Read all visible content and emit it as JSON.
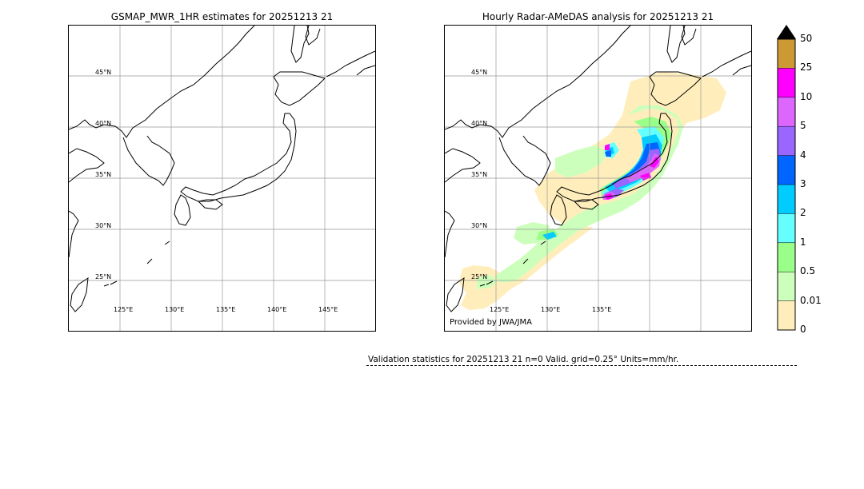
{
  "left_panel": {
    "title": "GSMAP_MWR_1HR estimates for 20251213 21",
    "lat_labels": [
      "45°N",
      "40°N",
      "35°N",
      "30°N",
      "25°N"
    ],
    "lon_labels": [
      "125°E",
      "130°E",
      "135°E",
      "140°E",
      "145°E"
    ]
  },
  "right_panel": {
    "title": "Hourly Radar-AMeDAS analysis for 20251213 21",
    "lat_labels": [
      "45°N",
      "40°N",
      "35°N",
      "30°N",
      "25°N"
    ],
    "lon_labels": [
      "125°E",
      "130°E",
      "135°E"
    ],
    "credit": "Provided by JWA/JMA"
  },
  "colorbar": {
    "levels": [
      "50",
      "25",
      "10",
      "5",
      "4",
      "3",
      "2",
      "1",
      "0.5",
      "0.01",
      "0"
    ],
    "colors": [
      "#cc9933",
      "#ff00ff",
      "#dd66ff",
      "#9966ff",
      "#0066ff",
      "#00ccff",
      "#66ffff",
      "#99ff88",
      "#ccffbb",
      "#ffeebb"
    ],
    "extend_color": "#000000"
  },
  "stats": {
    "text": "Validation statistics for 20251213 21  n=0 Valid. grid=0.25° Units=mm/hr."
  }
}
